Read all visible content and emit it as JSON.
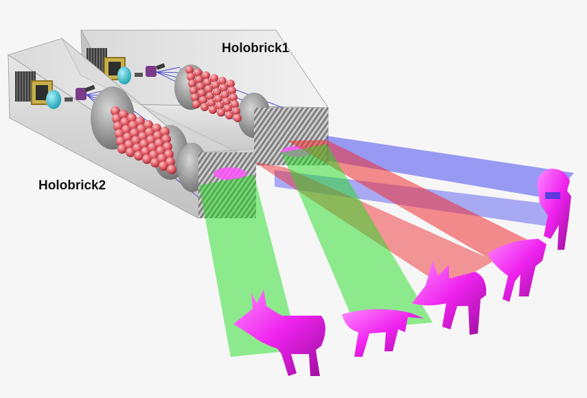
{
  "labels": {
    "holobrick1": "Holobrick1",
    "holobrick2": "Holobrick2"
  },
  "colors": {
    "background": "#f6f6f6",
    "brick_body": "#cfcfcf",
    "brick_edge": "#9a9a9a",
    "lens": "#8f8f8f",
    "sphere": "#e4646c",
    "camera_frame": "#c9b04a",
    "aperture": "#39c3d4",
    "beam_blue": "#4a4cf0",
    "beam_red": "#ee2f33",
    "beam_green": "#22dd22",
    "object_magenta": "#ee22ee"
  },
  "icons": {
    "object": "dog-figure",
    "optics": "lens-array"
  }
}
